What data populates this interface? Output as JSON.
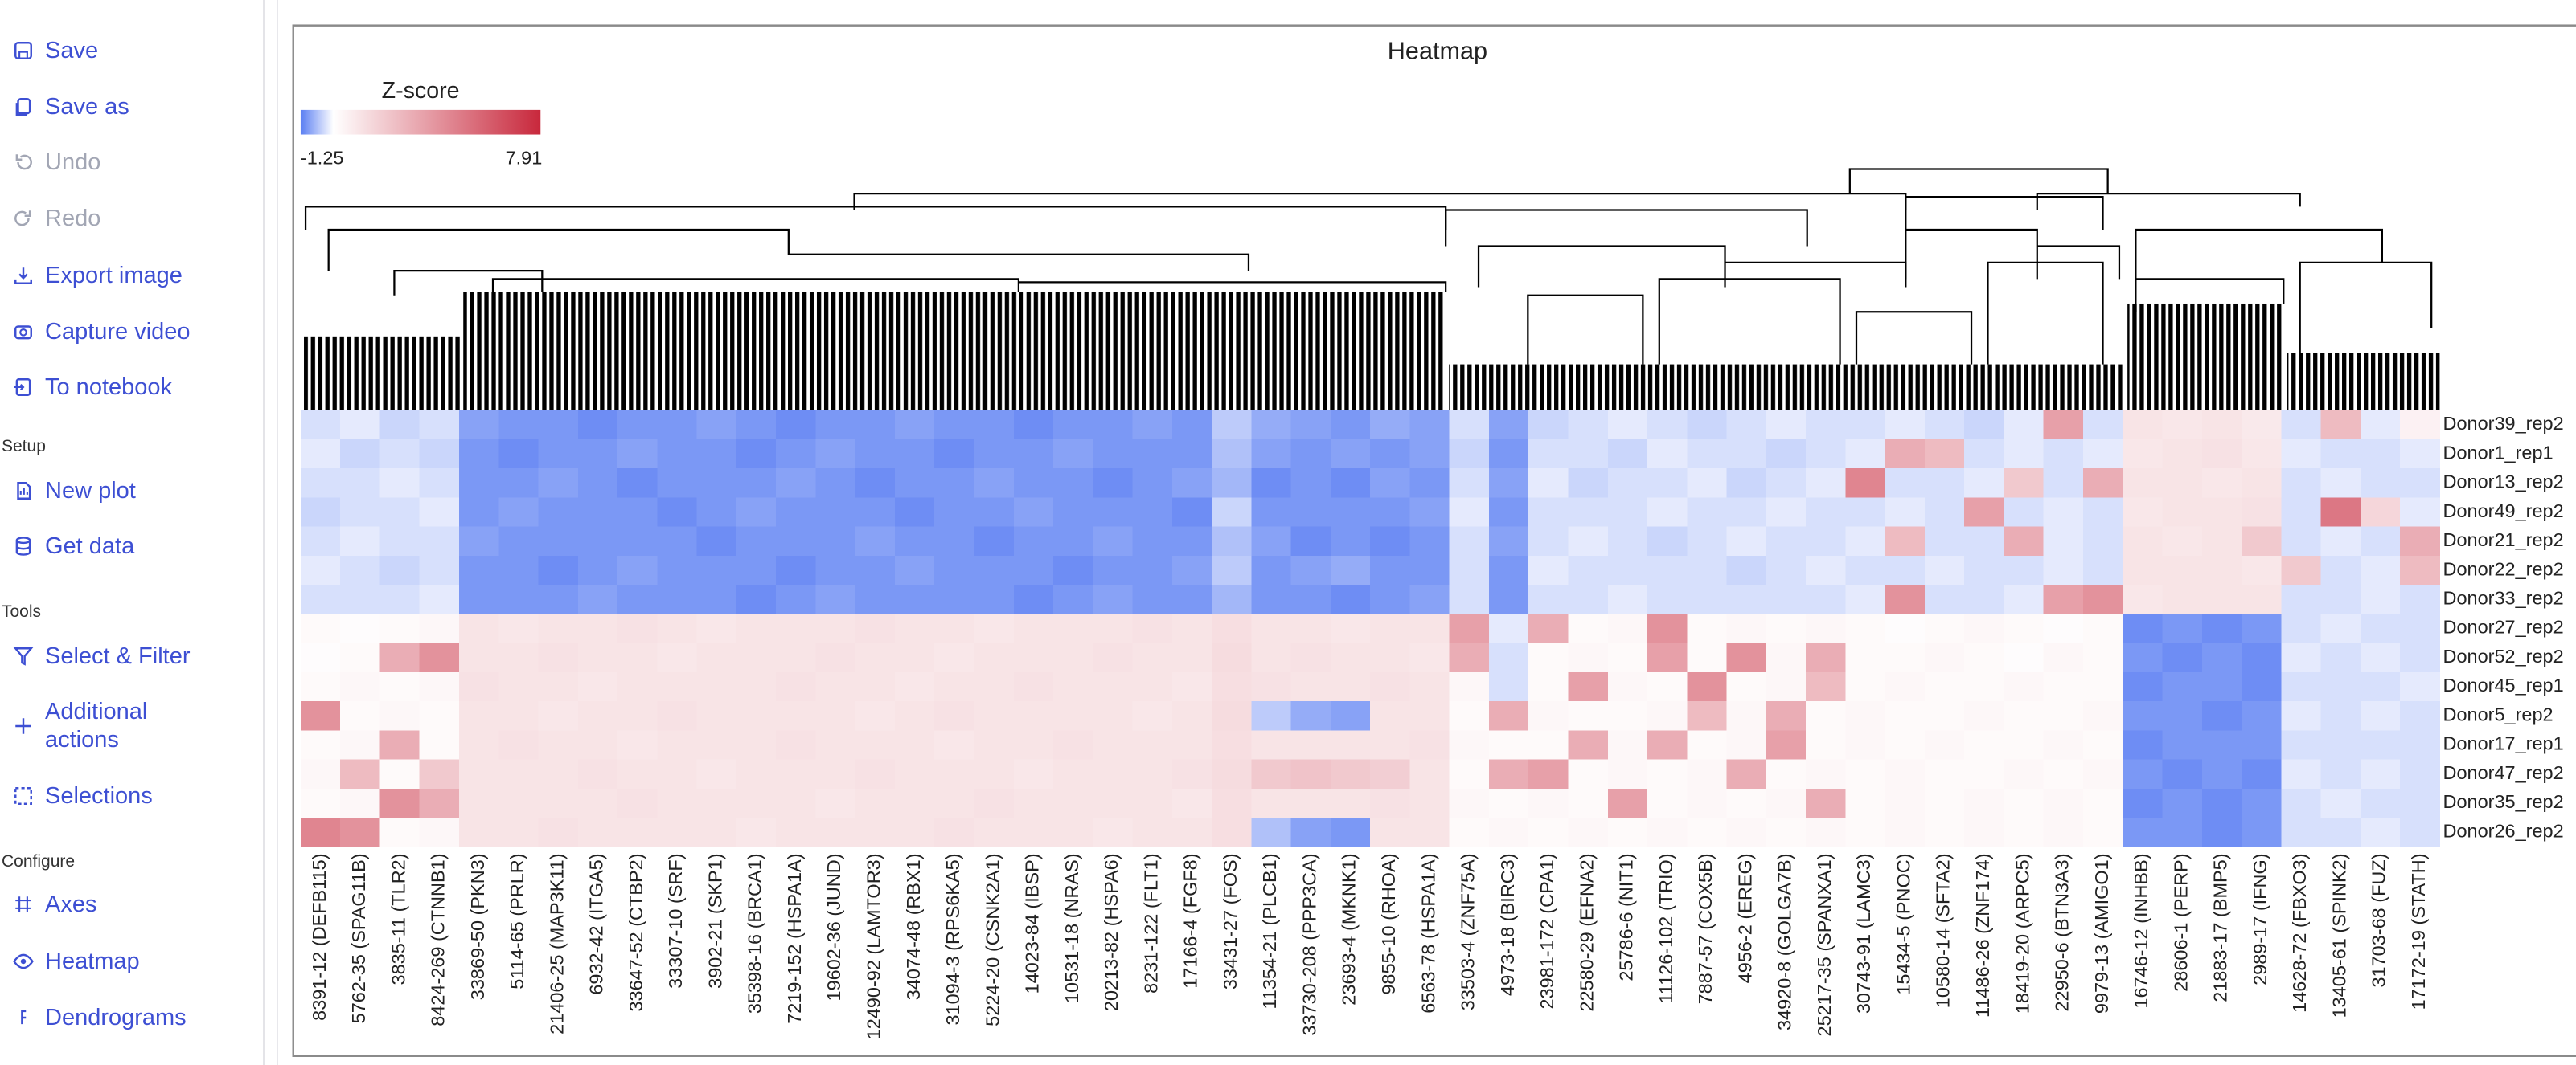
{
  "sidebar": {
    "groups": [
      {
        "items": [
          "Save",
          "Save as",
          "Undo",
          "Redo",
          "Export image",
          "Capture video",
          "To notebook"
        ]
      },
      {
        "heading": "Setup",
        "items": [
          "New plot",
          "Get data"
        ]
      },
      {
        "heading": "Tools",
        "items": [
          "Select & Filter",
          "Additional actions",
          "Selections"
        ]
      },
      {
        "heading": "Configure",
        "items": [
          "Axes",
          "Heatmap",
          "Dendrograms"
        ]
      }
    ]
  },
  "chart_data": {
    "type": "heatmap",
    "title": "Heatmap",
    "colorbar_title": "Z-score",
    "zlim": [
      -1.25,
      7.91
    ],
    "colors": {
      "low": "#5a7ef2",
      "mid": "#ffffff",
      "high": "#c8283c"
    },
    "columns": [
      "8391-12 (DEFB115)",
      "5762-35 (SPAG11B)",
      "3835-11 (TLR2)",
      "8424-269 (CTNNB1)",
      "33869-50 (PKN3)",
      "5114-65 (PRLR)",
      "21406-25 (MAP3K11)",
      "6932-42 (ITGA5)",
      "33647-52 (CTBP2)",
      "33307-10 (SRF)",
      "3902-21 (SKP1)",
      "35398-16 (BRCA1)",
      "7219-152 (HSPA1A)",
      "19602-36 (JUND)",
      "12490-92 (LAMTOR3)",
      "34074-48 (RBX1)",
      "31094-3 (RPS6KA5)",
      "5224-20 (CSNK2A1)",
      "14023-84 (IBSP)",
      "10531-18 (NRAS)",
      "20213-82 (HSPA6)",
      "8231-122 (FLT1)",
      "17166-4 (FGF8)",
      "33431-27 (FOS)",
      "11354-21 (PLCB1)",
      "33730-208 (PPP3CA)",
      "23693-4 (MKNK1)",
      "9855-10 (RHOA)",
      "6563-78 (HSPA1A)",
      "33503-4 (ZNF75A)",
      "4973-18 (BIRC3)",
      "23981-172 (CPA1)",
      "22580-29 (EFNA2)",
      "25786-6 (NIT1)",
      "11126-102 (TRIO)",
      "7887-57 (COX5B)",
      "4956-2 (EREG)",
      "34920-8 (GOLGA7B)",
      "25217-35 (SPANXA1)",
      "30743-91 (LAMC3)",
      "15434-5 (PNOC)",
      "10580-14 (SFTA2)",
      "11486-26 (ZNF174)",
      "18419-20 (ARPC5)",
      "22950-6 (BTN3A3)",
      "9979-13 (AMIGO1)",
      "16746-12 (INHBB)",
      "28606-1 (PERP)",
      "21883-17 (BMP5)",
      "2989-17 (IFNG)",
      "14628-72 (FBXO3)",
      "13405-61 (SPINK2)",
      "31703-68 (FUZ)",
      "17172-19 (STATH)"
    ],
    "rows": [
      "Donor39_rep2",
      "Donor1_rep1",
      "Donor13_rep2",
      "Donor49_rep2",
      "Donor21_rep2",
      "Donor22_rep2",
      "Donor33_rep2",
      "Donor27_rep2",
      "Donor52_rep2",
      "Donor45_rep1",
      "Donor5_rep2",
      "Donor17_rep1",
      "Donor47_rep2",
      "Donor35_rep2",
      "Donor26_rep2"
    ],
    "values": [
      [
        -0.3,
        -0.2,
        -0.4,
        -0.3,
        -0.9,
        -1.0,
        -1.0,
        -1.1,
        -1.0,
        -1.0,
        -0.9,
        -1.0,
        -1.1,
        -1.0,
        -1.0,
        -0.9,
        -1.0,
        -1.0,
        -1.1,
        -1.0,
        -1.0,
        -0.9,
        -1.0,
        -0.5,
        -0.8,
        -0.9,
        -1.0,
        -0.8,
        -0.9,
        -0.3,
        -0.9,
        -0.4,
        -0.3,
        -0.2,
        -0.3,
        -0.4,
        -0.3,
        -0.2,
        -0.3,
        -0.3,
        -0.2,
        -0.3,
        -0.4,
        -0.2,
        3.5,
        -0.3,
        1.0,
        0.9,
        1.0,
        0.8,
        -0.3,
        2.5,
        -0.2,
        0.5
      ],
      [
        -0.2,
        -0.4,
        -0.3,
        -0.4,
        -1.0,
        -1.1,
        -1.0,
        -1.0,
        -0.9,
        -1.0,
        -1.0,
        -1.1,
        -1.0,
        -0.9,
        -1.0,
        -1.0,
        -1.1,
        -1.0,
        -1.0,
        -0.9,
        -1.0,
        -1.0,
        -1.0,
        -0.6,
        -0.9,
        -1.0,
        -0.9,
        -1.0,
        -0.9,
        -0.4,
        -1.0,
        -0.3,
        -0.3,
        -0.4,
        -0.2,
        -0.3,
        -0.3,
        -0.4,
        -0.3,
        -0.2,
        3.0,
        2.5,
        -0.3,
        -0.2,
        -0.3,
        -0.2,
        0.9,
        1.0,
        1.1,
        0.9,
        -0.2,
        -0.3,
        -0.3,
        -0.2
      ],
      [
        -0.3,
        -0.3,
        -0.2,
        -0.3,
        -1.0,
        -1.0,
        -0.9,
        -1.0,
        -1.1,
        -1.0,
        -1.0,
        -1.0,
        -0.9,
        -1.0,
        -1.1,
        -1.0,
        -1.0,
        -0.9,
        -1.0,
        -1.0,
        -1.1,
        -1.0,
        -0.9,
        -0.7,
        -1.1,
        -1.0,
        -1.1,
        -0.9,
        -1.0,
        -0.3,
        -0.9,
        -0.2,
        -0.4,
        -0.3,
        -0.3,
        -0.2,
        -0.4,
        -0.3,
        -0.2,
        4.5,
        -0.3,
        -0.3,
        -0.2,
        2.0,
        -0.3,
        3.0,
        1.0,
        1.0,
        0.9,
        1.0,
        -0.3,
        -0.2,
        -0.3,
        -0.3
      ],
      [
        -0.4,
        -0.3,
        -0.3,
        -0.2,
        -1.0,
        -0.9,
        -1.0,
        -1.0,
        -1.0,
        -1.1,
        -1.0,
        -0.9,
        -1.0,
        -1.0,
        -1.0,
        -1.1,
        -1.0,
        -1.0,
        -0.9,
        -1.0,
        -1.0,
        -1.0,
        -1.1,
        -0.4,
        -1.0,
        -1.0,
        -1.0,
        -1.0,
        -0.9,
        -0.2,
        -1.0,
        -0.3,
        -0.3,
        -0.3,
        -0.2,
        -0.3,
        -0.3,
        -0.2,
        -0.3,
        -0.3,
        -0.2,
        -0.3,
        3.5,
        -0.3,
        -0.2,
        -0.3,
        0.9,
        1.0,
        1.0,
        1.1,
        -0.3,
        5.0,
        1.5,
        -0.2
      ],
      [
        -0.3,
        -0.2,
        -0.3,
        -0.3,
        -0.9,
        -1.0,
        -1.0,
        -1.0,
        -1.0,
        -1.0,
        -1.1,
        -1.0,
        -1.0,
        -1.0,
        -0.9,
        -1.0,
        -1.0,
        -1.1,
        -1.0,
        -1.0,
        -0.9,
        -1.0,
        -1.0,
        -0.6,
        -0.9,
        -1.1,
        -1.0,
        -1.1,
        -1.0,
        -0.3,
        -0.9,
        -0.3,
        -0.2,
        -0.3,
        -0.4,
        -0.3,
        -0.2,
        -0.3,
        -0.3,
        -0.2,
        2.5,
        -0.3,
        -0.3,
        3.0,
        -0.2,
        -0.3,
        1.0,
        0.9,
        1.0,
        2.0,
        -0.3,
        -0.2,
        -0.3,
        3.0
      ],
      [
        -0.2,
        -0.3,
        -0.4,
        -0.3,
        -1.0,
        -1.0,
        -1.1,
        -1.0,
        -0.9,
        -1.0,
        -1.0,
        -1.0,
        -1.1,
        -1.0,
        -1.0,
        -0.9,
        -1.0,
        -1.0,
        -1.0,
        -1.1,
        -1.0,
        -1.0,
        -0.9,
        -0.5,
        -1.0,
        -0.9,
        -0.8,
        -1.0,
        -1.0,
        -0.3,
        -1.0,
        -0.2,
        -0.3,
        -0.3,
        -0.3,
        -0.3,
        -0.4,
        -0.3,
        -0.2,
        -0.3,
        -0.3,
        -0.2,
        -0.3,
        -0.3,
        -0.2,
        -0.3,
        1.0,
        1.0,
        1.0,
        0.9,
        2.0,
        -0.3,
        -0.2,
        2.5
      ],
      [
        -0.3,
        -0.3,
        -0.3,
        -0.2,
        -1.0,
        -1.0,
        -1.0,
        -0.9,
        -1.0,
        -1.0,
        -1.0,
        -1.1,
        -1.0,
        -0.9,
        -1.0,
        -1.0,
        -1.0,
        -1.0,
        -1.1,
        -1.0,
        -0.9,
        -1.0,
        -1.0,
        -0.7,
        -1.0,
        -1.0,
        -1.1,
        -1.0,
        -0.9,
        -0.3,
        -1.0,
        -0.3,
        -0.3,
        -0.2,
        -0.3,
        -0.3,
        -0.3,
        -0.3,
        -0.3,
        -0.2,
        4.0,
        -0.3,
        -0.3,
        -0.2,
        3.5,
        4.0,
        0.9,
        1.0,
        1.0,
        1.0,
        -0.3,
        -0.3,
        -0.2,
        -0.3
      ],
      [
        0.2,
        0.1,
        0.2,
        0.3,
        1.0,
        0.9,
        1.0,
        1.0,
        1.1,
        1.0,
        0.9,
        1.0,
        1.0,
        1.0,
        1.1,
        1.0,
        1.0,
        0.9,
        1.0,
        1.0,
        1.0,
        1.1,
        1.0,
        1.2,
        1.0,
        1.0,
        0.9,
        1.0,
        1.0,
        3.5,
        -0.2,
        3.0,
        0.2,
        0.3,
        4.0,
        0.2,
        0.3,
        0.2,
        0.3,
        0.2,
        0.1,
        0.2,
        0.3,
        0.2,
        0.1,
        0.2,
        -1.1,
        -1.0,
        -1.1,
        -1.0,
        -0.3,
        -0.2,
        -0.3,
        -0.3
      ],
      [
        0.1,
        0.2,
        3.0,
        4.0,
        1.0,
        1.0,
        1.1,
        1.0,
        1.0,
        0.9,
        1.0,
        1.0,
        1.0,
        1.1,
        1.0,
        1.0,
        0.9,
        1.0,
        1.0,
        1.0,
        1.1,
        1.0,
        1.0,
        1.3,
        1.0,
        1.1,
        1.0,
        1.0,
        0.9,
        3.0,
        -0.3,
        0.2,
        0.3,
        0.2,
        3.5,
        0.2,
        4.0,
        0.3,
        3.0,
        0.2,
        0.2,
        0.3,
        0.2,
        0.1,
        0.3,
        0.2,
        -1.0,
        -1.1,
        -1.0,
        -1.1,
        -0.2,
        -0.3,
        -0.2,
        -0.3
      ],
      [
        0.2,
        0.3,
        0.2,
        0.3,
        1.1,
        1.0,
        1.0,
        0.9,
        1.0,
        1.0,
        1.0,
        1.0,
        1.1,
        1.0,
        1.0,
        0.9,
        1.0,
        1.0,
        1.1,
        1.0,
        1.0,
        1.0,
        0.9,
        1.2,
        1.1,
        1.0,
        1.0,
        1.1,
        1.0,
        0.3,
        -0.3,
        0.2,
        3.5,
        0.3,
        0.2,
        4.0,
        0.2,
        0.3,
        2.5,
        0.2,
        0.3,
        0.2,
        0.2,
        0.3,
        0.2,
        0.2,
        -1.1,
        -1.0,
        -1.0,
        -1.1,
        -0.3,
        -0.3,
        -0.3,
        -0.2
      ],
      [
        4.0,
        0.2,
        0.3,
        0.2,
        1.0,
        1.0,
        0.9,
        1.0,
        1.0,
        1.1,
        1.0,
        1.0,
        1.0,
        1.0,
        0.9,
        1.0,
        1.1,
        1.0,
        1.0,
        1.0,
        1.0,
        0.9,
        1.0,
        1.3,
        -0.5,
        -0.8,
        -0.9,
        1.0,
        1.0,
        0.2,
        3.0,
        0.3,
        0.2,
        0.2,
        0.3,
        2.5,
        0.3,
        3.0,
        0.2,
        0.3,
        0.2,
        0.2,
        0.3,
        0.2,
        0.2,
        0.3,
        -1.0,
        -1.0,
        -1.1,
        -1.0,
        -0.2,
        -0.3,
        -0.2,
        -0.3
      ],
      [
        0.2,
        0.3,
        3.0,
        0.2,
        1.0,
        1.1,
        1.0,
        1.0,
        0.9,
        1.0,
        1.0,
        1.0,
        1.1,
        1.0,
        1.0,
        1.0,
        0.9,
        1.0,
        1.0,
        1.1,
        1.0,
        1.0,
        1.0,
        1.2,
        1.0,
        1.0,
        1.0,
        1.0,
        1.1,
        0.3,
        0.2,
        0.2,
        3.0,
        0.3,
        3.0,
        0.2,
        0.3,
        3.5,
        0.2,
        0.3,
        0.2,
        0.3,
        0.2,
        0.2,
        0.3,
        0.2,
        -1.1,
        -1.0,
        -1.0,
        -1.0,
        -0.3,
        -0.3,
        -0.3,
        -0.3
      ],
      [
        0.3,
        2.5,
        0.2,
        2.0,
        1.0,
        1.0,
        1.0,
        1.1,
        1.0,
        1.0,
        0.9,
        1.0,
        1.0,
        1.0,
        1.1,
        1.0,
        1.0,
        1.0,
        0.9,
        1.0,
        1.0,
        1.0,
        1.1,
        1.3,
        2.0,
        2.2,
        2.0,
        1.8,
        1.0,
        0.2,
        3.0,
        3.5,
        0.2,
        0.3,
        0.2,
        0.3,
        3.0,
        0.2,
        0.3,
        0.2,
        0.3,
        0.2,
        0.2,
        0.3,
        0.2,
        0.3,
        -1.0,
        -1.1,
        -1.0,
        -1.1,
        -0.2,
        -0.3,
        -0.2,
        -0.3
      ],
      [
        0.2,
        0.3,
        4.0,
        3.0,
        1.0,
        1.0,
        1.0,
        1.0,
        1.1,
        1.0,
        1.0,
        1.0,
        1.0,
        0.9,
        1.0,
        1.0,
        1.0,
        1.1,
        1.0,
        1.0,
        1.0,
        1.0,
        0.9,
        1.2,
        1.0,
        1.0,
        1.0,
        1.1,
        1.0,
        0.3,
        0.2,
        0.3,
        0.2,
        3.5,
        0.2,
        0.3,
        0.2,
        0.3,
        3.0,
        0.2,
        0.3,
        0.2,
        0.3,
        0.2,
        0.3,
        0.2,
        -1.1,
        -1.0,
        -1.1,
        -1.0,
        -0.3,
        -0.2,
        -0.3,
        -0.3
      ],
      [
        4.5,
        4.0,
        0.2,
        0.3,
        1.0,
        1.0,
        1.1,
        1.0,
        1.0,
        1.0,
        1.0,
        0.9,
        1.0,
        1.0,
        1.0,
        1.0,
        1.1,
        1.0,
        1.0,
        1.0,
        0.9,
        1.0,
        1.0,
        1.2,
        -0.6,
        -0.9,
        -1.0,
        1.0,
        1.0,
        0.2,
        0.3,
        0.2,
        0.3,
        0.2,
        0.3,
        0.2,
        0.3,
        0.2,
        0.3,
        0.2,
        0.3,
        0.2,
        0.3,
        0.2,
        0.3,
        0.2,
        -1.0,
        -1.0,
        -1.1,
        -1.0,
        -0.3,
        -0.3,
        -0.2,
        -0.3
      ]
    ]
  }
}
